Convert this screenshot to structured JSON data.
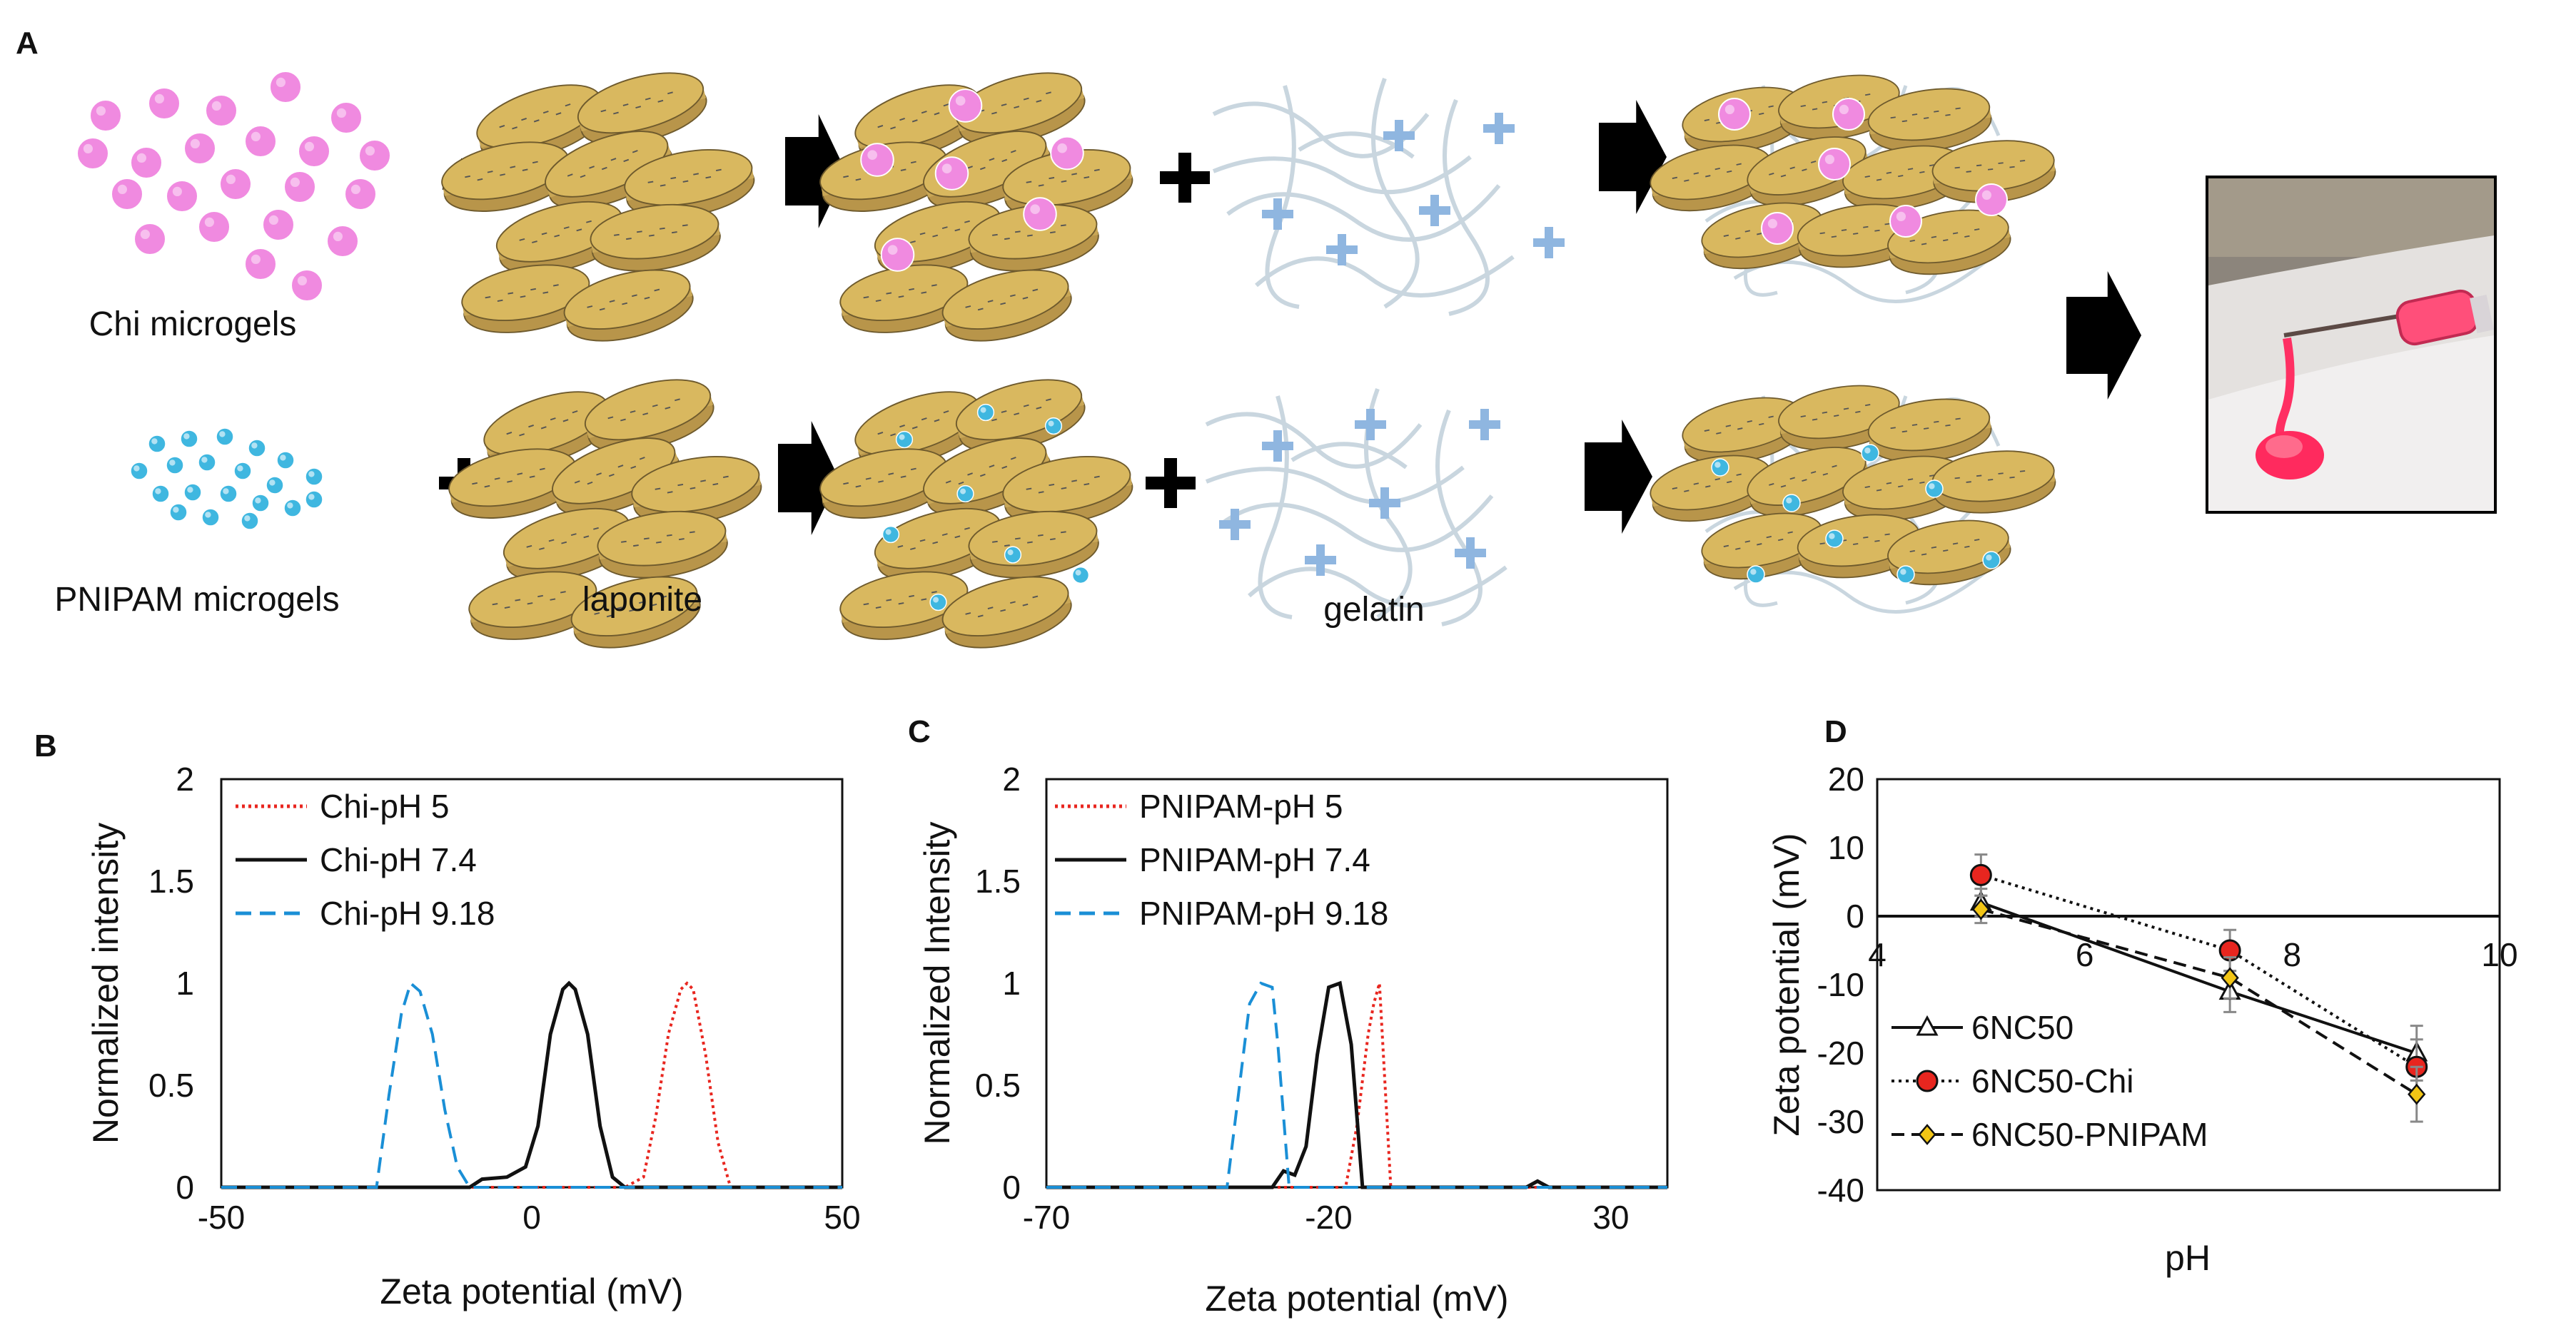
{
  "panel_letters": {
    "a": "A",
    "b": "B",
    "c": "C",
    "d": "D"
  },
  "schematic": {
    "labels": {
      "chi": "Chi microgels",
      "pnipam": "PNIPAM microgels",
      "laponite": "laponite",
      "gelatin": "gelatin"
    },
    "colors": {
      "chi_particle": "#f08ae0",
      "pnipam_particle": "#3fb7e0",
      "disc": "#d9b85f",
      "gelatin_chain": "#c9d6df",
      "plus": "#8fb6e0"
    }
  },
  "chart_data": [
    {
      "panel": "B",
      "type": "line",
      "xlabel": "Zeta potential  (mV)",
      "ylabel": "Normalized  intensity",
      "xlim": [
        -50,
        50
      ],
      "ylim": [
        0,
        2
      ],
      "xticks": [
        "-50",
        "0",
        "50"
      ],
      "yticks": [
        "0",
        "0.5",
        "1",
        "1.5",
        "2"
      ],
      "legend_position": "top-left",
      "series": [
        {
          "name": "Chi-pH 5",
          "color": "#e8261f",
          "style": "dotted",
          "x": [
            -50,
            15,
            18,
            20,
            22,
            24,
            25,
            26,
            28,
            30,
            32,
            50
          ],
          "y": [
            0,
            0,
            0.05,
            0.35,
            0.75,
            0.97,
            1.0,
            0.97,
            0.65,
            0.22,
            0,
            0
          ]
        },
        {
          "name": "Chi-pH 7.4",
          "color": "#111111",
          "style": "solid",
          "x": [
            -50,
            -10,
            -8,
            -4,
            -1,
            1,
            3,
            5,
            6,
            7,
            9,
            11,
            13,
            15,
            50
          ],
          "y": [
            0,
            0,
            0.04,
            0.05,
            0.1,
            0.3,
            0.75,
            0.97,
            1.0,
            0.97,
            0.75,
            0.3,
            0.05,
            0,
            0
          ]
        },
        {
          "name": "Chi-pH 9.18",
          "color": "#1a8fd6",
          "style": "dashed",
          "x": [
            -50,
            -25,
            -23,
            -21,
            -19.5,
            -18,
            -16,
            -14,
            -12,
            -10,
            50
          ],
          "y": [
            0,
            0,
            0.45,
            0.85,
            1.0,
            0.96,
            0.75,
            0.38,
            0.1,
            0,
            0
          ]
        }
      ]
    },
    {
      "panel": "C",
      "type": "line",
      "xlabel": "Zeta potential  (mV)",
      "ylabel": "Normalized  Intensity",
      "xlim": [
        -70,
        40
      ],
      "ylim": [
        0,
        2
      ],
      "xticks": [
        "-70",
        "-20",
        "30"
      ],
      "yticks": [
        "0",
        "0.5",
        "1",
        "1.5",
        "2"
      ],
      "legend_position": "top-left",
      "series": [
        {
          "name": "PNIPAM-pH 5",
          "color": "#e8261f",
          "style": "dotted",
          "x": [
            -70,
            -17,
            -15,
            -13,
            -12,
            -11,
            -10,
            -9,
            40
          ],
          "y": [
            0,
            0,
            0.3,
            0.75,
            0.9,
            1.0,
            0.5,
            0,
            0
          ]
        },
        {
          "name": "PNIPAM-pH 7.4",
          "color": "#111111",
          "style": "solid",
          "x": [
            -70,
            -30,
            -28,
            -26,
            -24,
            -22,
            -20,
            -18,
            -16,
            -14,
            15,
            17,
            19,
            40
          ],
          "y": [
            0,
            0,
            0.08,
            0.06,
            0.2,
            0.65,
            0.98,
            1.0,
            0.7,
            0,
            0,
            0.03,
            0,
            0
          ]
        },
        {
          "name": "PNIPAM-pH 9.18",
          "color": "#1a8fd6",
          "style": "dashed",
          "x": [
            -70,
            -38,
            -36,
            -34,
            -32,
            -30,
            -29,
            -27,
            40
          ],
          "y": [
            0,
            0,
            0.45,
            0.9,
            1.0,
            0.98,
            0.7,
            0,
            0
          ]
        }
      ]
    },
    {
      "panel": "D",
      "type": "line",
      "xlabel": "pH",
      "ylabel": "Zeta potential  (mV)",
      "xlim": [
        4,
        10
      ],
      "ylim": [
        -40,
        20
      ],
      "xticks": [
        "4",
        "6",
        "8",
        "10"
      ],
      "yticks": [
        "20",
        "10",
        "0",
        "-10",
        "-20",
        "-30",
        "-40"
      ],
      "legend_position": "bottom-left",
      "series": [
        {
          "name": "6NC50",
          "color": "#111111",
          "style": "solid",
          "marker": "triangle",
          "marker_fill": "#ffffff",
          "x": [
            5,
            7.4,
            9.2
          ],
          "y": [
            2,
            -11,
            -20
          ],
          "err": [
            2,
            3,
            4
          ]
        },
        {
          "name": "6NC50-Chi",
          "color": "#111111",
          "style": "dotted",
          "marker": "circle",
          "marker_fill": "#e8261f",
          "x": [
            5,
            7.4,
            9.2
          ],
          "y": [
            6,
            -5,
            -22
          ],
          "err": [
            3,
            3,
            4
          ]
        },
        {
          "name": "6NC50-PNIPAM",
          "color": "#111111",
          "style": "dashed",
          "marker": "diamond",
          "marker_fill": "#f2c515",
          "x": [
            5,
            7.4,
            9.2
          ],
          "y": [
            1,
            -9,
            -26
          ],
          "err": [
            2,
            3,
            4
          ]
        }
      ]
    }
  ]
}
